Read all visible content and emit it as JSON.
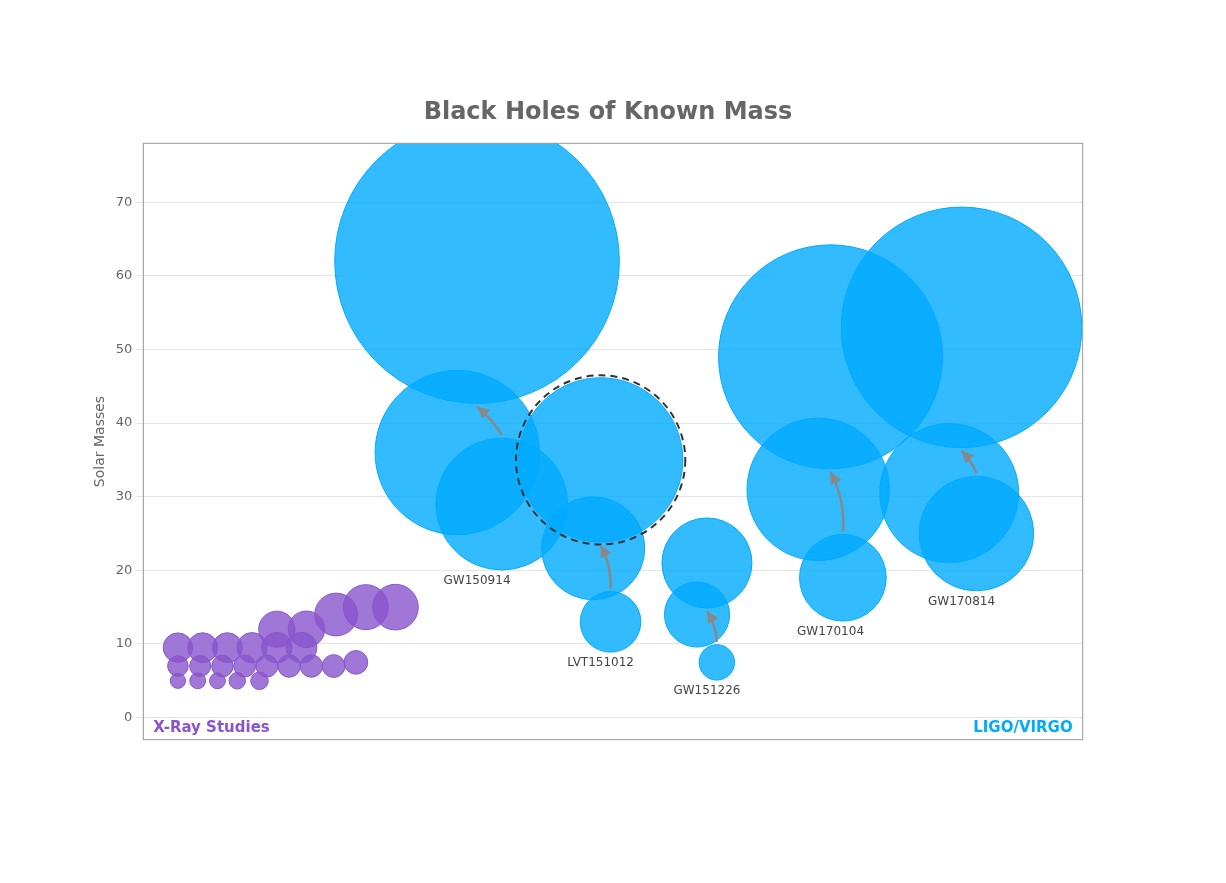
{
  "chart_data": {
    "type": "bubble",
    "title": "Black Holes of Known Mass",
    "y_label": "Solar Masses",
    "xlim": [
      0,
      19
    ],
    "ylim": [
      -3,
      78
    ],
    "yticks": [
      0,
      10,
      20,
      30,
      40,
      50,
      60,
      70
    ],
    "grid": true,
    "tick_labels": "y",
    "legend": false,
    "series": [
      {
        "name": "X-Ray Studies",
        "color": "#8855cc",
        "points": [
          {
            "x": 0.7,
            "y": 5,
            "size": 120
          },
          {
            "x": 1.1,
            "y": 5,
            "size": 130
          },
          {
            "x": 1.5,
            "y": 5,
            "size": 130
          },
          {
            "x": 1.9,
            "y": 5,
            "size": 140
          },
          {
            "x": 2.35,
            "y": 5,
            "size": 160
          },
          {
            "x": 0.7,
            "y": 9.5,
            "size": 450
          },
          {
            "x": 1.2,
            "y": 9.5,
            "size": 460
          },
          {
            "x": 1.7,
            "y": 9.5,
            "size": 460
          },
          {
            "x": 2.2,
            "y": 9.5,
            "size": 470
          },
          {
            "x": 2.7,
            "y": 9.5,
            "size": 480
          },
          {
            "x": 3.2,
            "y": 9.5,
            "size": 490
          },
          {
            "x": 0.7,
            "y": 7,
            "size": 220
          },
          {
            "x": 1.15,
            "y": 7,
            "size": 230
          },
          {
            "x": 1.6,
            "y": 7,
            "size": 240
          },
          {
            "x": 2.05,
            "y": 7,
            "size": 250
          },
          {
            "x": 2.5,
            "y": 7,
            "size": 250
          },
          {
            "x": 2.95,
            "y": 7,
            "size": 260
          },
          {
            "x": 3.4,
            "y": 7,
            "size": 260
          },
          {
            "x": 3.85,
            "y": 7,
            "size": 270
          },
          {
            "x": 4.3,
            "y": 7.5,
            "size": 290
          },
          {
            "x": 2.7,
            "y": 12,
            "size": 680
          },
          {
            "x": 3.3,
            "y": 12,
            "size": 690
          },
          {
            "x": 3.9,
            "y": 14,
            "size": 950
          },
          {
            "x": 4.5,
            "y": 15,
            "size": 1050
          },
          {
            "x": 5.1,
            "y": 15,
            "size": 1080
          }
        ]
      },
      {
        "name": "LIGO/VIRGO",
        "color": "#00aaff",
        "events": [
          {
            "name": "GW150914",
            "points": [
              {
                "x": 6.35,
                "y": 36,
                "size": 14000
              },
              {
                "x": 7.25,
                "y": 29,
                "size": 9000
              },
              {
                "x": 6.75,
                "y": 62,
                "size": 42000
              }
            ]
          },
          {
            "name": "LVT151012",
            "line_style": "dashed",
            "points": [
              {
                "x": 9.1,
                "y": 23,
                "size": 5500
              },
              {
                "x": 9.45,
                "y": 13,
                "size": 1900
              },
              {
                "x": 9.25,
                "y": 35,
                "size": 14000
              }
            ]
          },
          {
            "name": "GW151226",
            "points": [
              {
                "x": 11.2,
                "y": 14,
                "size": 2200
              },
              {
                "x": 11.6,
                "y": 7.5,
                "size": 650
              },
              {
                "x": 11.4,
                "y": 21,
                "size": 4200
              }
            ]
          },
          {
            "name": "GW170104",
            "points": [
              {
                "x": 13.65,
                "y": 31,
                "size": 10500
              },
              {
                "x": 14.15,
                "y": 19,
                "size": 3900
              },
              {
                "x": 13.9,
                "y": 49,
                "size": 26000
              }
            ]
          },
          {
            "name": "GW170814",
            "points": [
              {
                "x": 16.3,
                "y": 30.5,
                "size": 10000
              },
              {
                "x": 16.85,
                "y": 25,
                "size": 6800
              },
              {
                "x": 16.55,
                "y": 53,
                "size": 30000
              }
            ]
          }
        ]
      }
    ]
  }
}
